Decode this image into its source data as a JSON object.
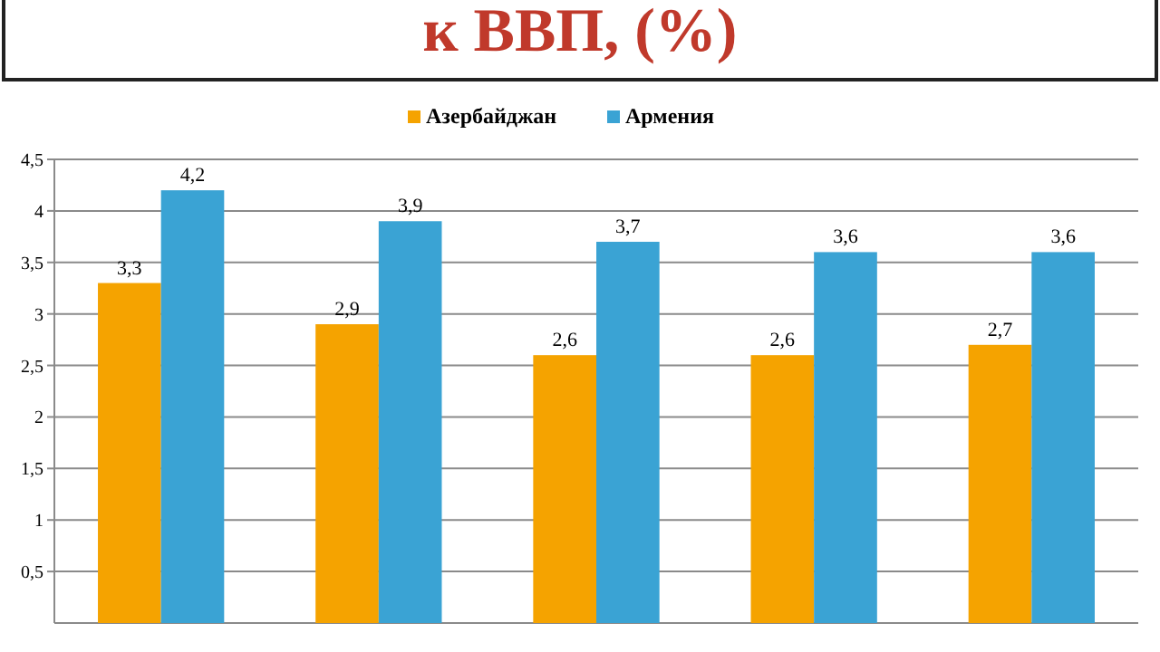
{
  "chart_data": {
    "type": "bar",
    "title": "к ВВП, (%)",
    "categories": [
      null,
      null,
      null,
      null,
      null
    ],
    "series": [
      {
        "name": "Азербайджан",
        "color": "#f5a300",
        "values": [
          3.3,
          2.9,
          2.6,
          2.6,
          2.7
        ],
        "value_labels": [
          "3,3",
          "2,9",
          "2,6",
          "2,6",
          "2,7"
        ]
      },
      {
        "name": "Армения",
        "color": "#3aa3d4",
        "values": [
          4.2,
          3.9,
          3.7,
          3.6,
          3.6
        ],
        "value_labels": [
          "4,2",
          "3,9",
          "3,7",
          "3,6",
          "3,6"
        ]
      }
    ],
    "ylim": [
      0,
      4.5
    ],
    "yticks": [
      {
        "value": 0.5,
        "label": "0,5"
      },
      1,
      {
        "value": 1.5,
        "label": "1,5"
      },
      2,
      {
        "value": 2.5,
        "label": "2,5"
      },
      3,
      {
        "value": 3.5,
        "label": "3,5"
      },
      4,
      {
        "value": 4.5,
        "label": "4,5"
      }
    ],
    "grid": "y",
    "legend": "top"
  }
}
